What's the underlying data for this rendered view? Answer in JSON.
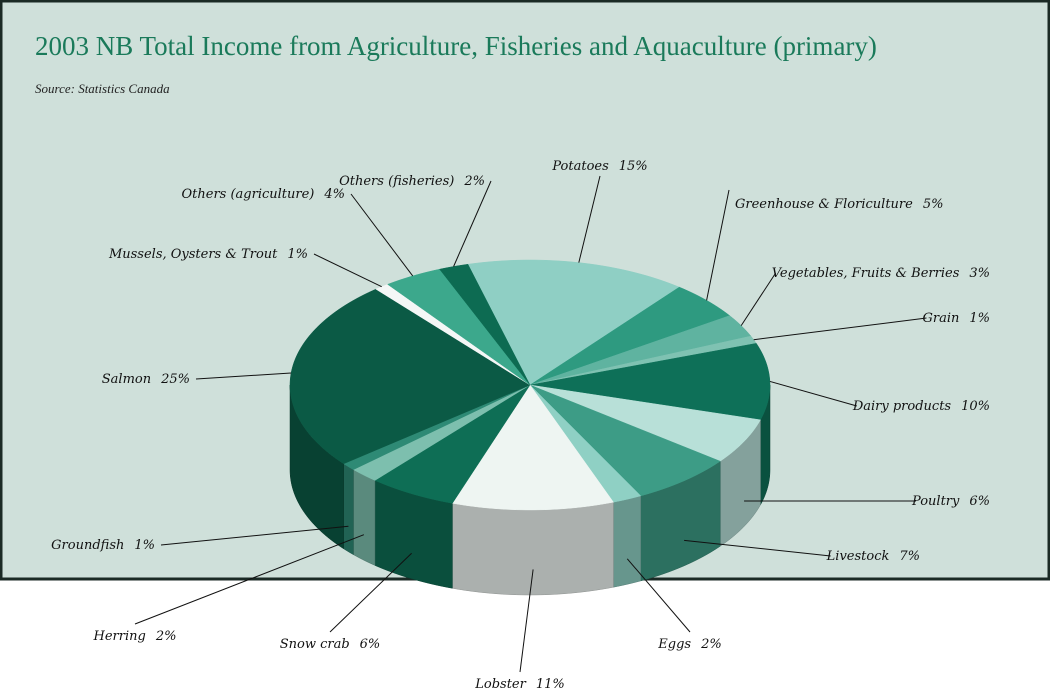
{
  "chart_data": {
    "type": "pie",
    "title": "2003 NB Total Income from Agriculture, Fisheries and Aquaculture (primary)",
    "subtitle": "Source: Statistics Canada",
    "categories": [
      "Potatoes",
      "Greenhouse & Floriculture",
      "Vegetables, Fruits & Berries",
      "Grain",
      "Dairy products",
      "Poultry",
      "Livestock",
      "Eggs",
      "Lobster",
      "Snow crab",
      "Herring",
      "Groundfish",
      "Salmon",
      "Mussels, Oysters & Trout",
      "Others (agriculture)",
      "Others (fisheries)"
    ],
    "values": [
      15,
      5,
      3,
      1,
      10,
      6,
      7,
      2,
      11,
      6,
      2,
      1,
      25,
      1,
      4,
      2
    ],
    "value_labels": [
      "15%",
      "5%",
      "3%",
      "1%",
      "10%",
      "6%",
      "7%",
      "2%",
      "11%",
      "6%",
      "2%",
      "1%",
      "25%",
      "1%",
      "4%",
      "2%"
    ],
    "colors": [
      "#8fcfc4",
      "#2e9a80",
      "#5fb3a0",
      "#7fc2b2",
      "#0e7058",
      "#b8e0d8",
      "#3d9c86",
      "#8fd0c4",
      "#eef5f2",
      "#0e6e55",
      "#7dbfae",
      "#2e8a75",
      "#0b5a45",
      "#f4f7f6",
      "#3ca88c",
      "#0d6b52"
    ]
  }
}
